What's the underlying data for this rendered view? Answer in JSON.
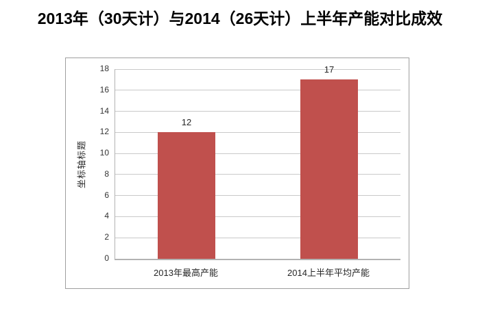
{
  "title": {
    "text": "2013年（30天计）与2014（26天计）上半年产能对比成效"
  },
  "chart_data": {
    "type": "bar",
    "title": "2013年（30天计）与2014（26天计）上半年产能对比成效",
    "categories": [
      "2013年最高产能",
      "2014上半年平均产能"
    ],
    "values": [
      12,
      17
    ],
    "data_labels": [
      "12",
      "17"
    ],
    "xlabel": "",
    "ylabel": "坐标轴标题",
    "ylim": [
      0,
      18
    ],
    "yticks": [
      0,
      2,
      4,
      6,
      8,
      10,
      12,
      14,
      16,
      18
    ],
    "grid": true,
    "legend_position": "none",
    "bar_color": "#c0504d"
  },
  "colors": {
    "background": "#ffffff",
    "bar": "#c0504d",
    "gridline": "#c9c9c9",
    "axis_line": "#b2b2b2",
    "chart_border": "#9e9e9e",
    "title_text": "#000000",
    "label_text": "#333333"
  }
}
